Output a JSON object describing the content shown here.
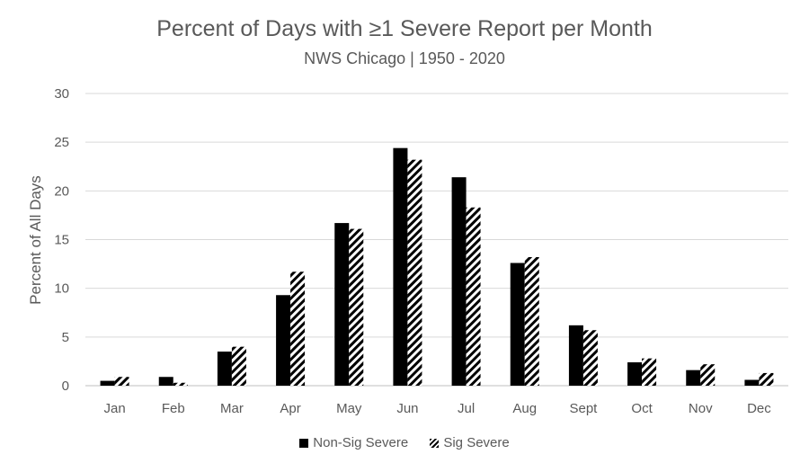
{
  "chart_data": {
    "type": "bar",
    "title": "Percent of Days with ≥1 Severe Report per Month",
    "subtitle": "NWS Chicago | 1950 - 2020",
    "xlabel": "",
    "ylabel": "Percent of All Days",
    "ylim": [
      0,
      30
    ],
    "yticks": [
      "0",
      "5",
      "10",
      "15",
      "20",
      "25",
      "30"
    ],
    "grid": true,
    "legend_position": "bottom",
    "categories": [
      "Jan",
      "Feb",
      "Mar",
      "Apr",
      "May",
      "Jun",
      "Jul",
      "Aug",
      "Sept",
      "Oct",
      "Nov",
      "Dec"
    ],
    "series": [
      {
        "name": "Non-Sig Severe",
        "fill": "solid",
        "color": "#000000",
        "values": [
          0.5,
          0.9,
          3.5,
          9.3,
          16.7,
          24.4,
          21.4,
          12.6,
          6.2,
          2.4,
          1.6,
          0.6
        ]
      },
      {
        "name": "Sig Severe",
        "fill": "hatched",
        "color": "#000000",
        "values": [
          0.9,
          0.3,
          4.0,
          11.7,
          16.1,
          23.2,
          18.3,
          13.2,
          5.7,
          2.8,
          2.2,
          1.3
        ]
      }
    ]
  }
}
